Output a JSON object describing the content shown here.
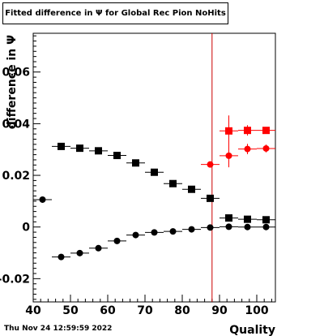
{
  "title": "Fitted difference in  Ψ  for Global Rec Pion NoHits",
  "timestamp": "Thu Nov 24 12:59:59 2022",
  "chart_data": {
    "type": "scatter",
    "xlabel": "Quality",
    "ylabel": "difference in  Ψ",
    "xlim": [
      40,
      105
    ],
    "ylim": [
      -0.029,
      0.075
    ],
    "x_ticks": [
      40,
      50,
      60,
      70,
      80,
      90,
      100
    ],
    "x_tick_labels": [
      "40",
      "50",
      "60",
      "70",
      "80",
      "90",
      "100"
    ],
    "y_ticks": [
      -0.02,
      0,
      0.02,
      0.04,
      0.06
    ],
    "y_tick_labels": [
      "-0.02",
      "0",
      "0.02",
      "0.04",
      "0.06"
    ],
    "vertical_line": {
      "x": 88,
      "color": "#cc0000"
    },
    "series": [
      {
        "marker": "square",
        "color": "#000000",
        "points": [
          {
            "x": 47.5,
            "y": 0.0312,
            "xerr": 2.5,
            "yerr": 0
          },
          {
            "x": 52.5,
            "y": 0.0305,
            "xerr": 2.5,
            "yerr": 0
          },
          {
            "x": 57.5,
            "y": 0.0295,
            "xerr": 2.5,
            "yerr": 0
          },
          {
            "x": 62.5,
            "y": 0.0277,
            "xerr": 2.5,
            "yerr": 0
          },
          {
            "x": 67.5,
            "y": 0.0248,
            "xerr": 2.5,
            "yerr": 0
          },
          {
            "x": 72.5,
            "y": 0.0212,
            "xerr": 2.5,
            "yerr": 0
          },
          {
            "x": 77.5,
            "y": 0.0168,
            "xerr": 2.5,
            "yerr": 0
          },
          {
            "x": 82.5,
            "y": 0.0146,
            "xerr": 2.5,
            "yerr": 0
          },
          {
            "x": 87.5,
            "y": 0.0111,
            "xerr": 2.5,
            "yerr": 0
          },
          {
            "x": 92.5,
            "y": 0.0035,
            "xerr": 2.5,
            "yerr": 0
          },
          {
            "x": 97.5,
            "y": 0.003,
            "xerr": 2.5,
            "yerr": 0
          },
          {
            "x": 102.5,
            "y": 0.0028,
            "xerr": 2.5,
            "yerr": 0
          }
        ]
      },
      {
        "marker": "circle",
        "color": "#000000",
        "points": [
          {
            "x": 42.5,
            "y": 0.0106,
            "xerr": 2.5,
            "yerr": 0
          },
          {
            "x": 47.5,
            "y": -0.0116,
            "xerr": 2.5,
            "yerr": 0
          },
          {
            "x": 52.5,
            "y": -0.0101,
            "xerr": 2.5,
            "yerr": 0
          },
          {
            "x": 57.5,
            "y": -0.0082,
            "xerr": 2.5,
            "yerr": 0
          },
          {
            "x": 62.5,
            "y": -0.0054,
            "xerr": 2.5,
            "yerr": 0
          },
          {
            "x": 67.5,
            "y": -0.0031,
            "xerr": 2.5,
            "yerr": 0
          },
          {
            "x": 72.5,
            "y": -0.0021,
            "xerr": 2.5,
            "yerr": 0
          },
          {
            "x": 77.5,
            "y": -0.0017,
            "xerr": 2.5,
            "yerr": 0
          },
          {
            "x": 82.5,
            "y": -0.0009,
            "xerr": 2.5,
            "yerr": 0
          },
          {
            "x": 87.5,
            "y": -0.0002,
            "xerr": 2.5,
            "yerr": 0
          },
          {
            "x": 92.5,
            "y": 0.0001,
            "xerr": 2.5,
            "yerr": 0
          },
          {
            "x": 97.5,
            "y": 0.0,
            "xerr": 2.5,
            "yerr": 0
          },
          {
            "x": 102.5,
            "y": 0.0,
            "xerr": 2.5,
            "yerr": 0
          }
        ]
      },
      {
        "marker": "square",
        "color": "#ff0000",
        "points": [
          {
            "x": 92.5,
            "y": 0.0372,
            "xerr": 2.5,
            "yerr": 0.006
          },
          {
            "x": 97.5,
            "y": 0.0374,
            "xerr": 2.5,
            "yerr": 0.002
          },
          {
            "x": 102.5,
            "y": 0.0374,
            "xerr": 2.5,
            "yerr": 0.001
          }
        ]
      },
      {
        "marker": "circle",
        "color": "#ff0000",
        "points": [
          {
            "x": 87.5,
            "y": 0.0242,
            "xerr": 2.5,
            "yerr": 0
          },
          {
            "x": 92.5,
            "y": 0.0276,
            "xerr": 2.5,
            "yerr": 0.0045
          },
          {
            "x": 97.5,
            "y": 0.0302,
            "xerr": 2.5,
            "yerr": 0.002
          },
          {
            "x": 102.5,
            "y": 0.0304,
            "xerr": 2.5,
            "yerr": 0.0015
          }
        ]
      }
    ]
  }
}
